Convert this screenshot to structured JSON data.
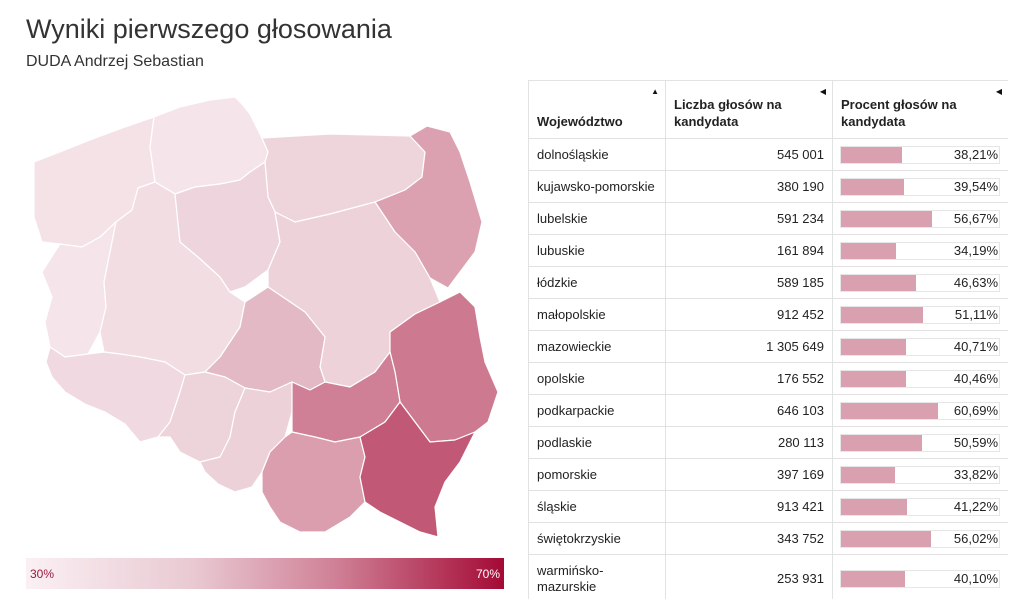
{
  "title": "Wyniki pierwszego głosowania",
  "subtitle": "DUDA Andrzej Sebastian",
  "scale": {
    "min_label": "30%",
    "max_label": "70%"
  },
  "table": {
    "headers": [
      "Województwo",
      "Liczba głosów na kandydata",
      "Procent głosów na kandydata"
    ]
  },
  "colors": {
    "bar": "#d9a1b0",
    "scale_low": "#faf0f3",
    "scale_high": "#a40a35"
  },
  "chart_data": {
    "type": "table",
    "title": "Wyniki pierwszego głosowania",
    "subtitle": "DUDA Andrzej Sebastian",
    "columns": [
      "Województwo",
      "Liczba głosów na kandydata",
      "Procent głosów na kandydata"
    ],
    "color_scale": {
      "min": 30,
      "max": 70,
      "unit": "%"
    },
    "rows": [
      {
        "name": "dolnośląskie",
        "votes": "545 001",
        "pct": 38.21,
        "pct_label": "38,21%"
      },
      {
        "name": "kujawsko-pomorskie",
        "votes": "380 190",
        "pct": 39.54,
        "pct_label": "39,54%"
      },
      {
        "name": "lubelskie",
        "votes": "591 234",
        "pct": 56.67,
        "pct_label": "56,67%"
      },
      {
        "name": "lubuskie",
        "votes": "161 894",
        "pct": 34.19,
        "pct_label": "34,19%"
      },
      {
        "name": "łódzkie",
        "votes": "589 185",
        "pct": 46.63,
        "pct_label": "46,63%"
      },
      {
        "name": "małopolskie",
        "votes": "912 452",
        "pct": 51.11,
        "pct_label": "51,11%"
      },
      {
        "name": "mazowieckie",
        "votes": "1 305 649",
        "pct": 40.71,
        "pct_label": "40,71%"
      },
      {
        "name": "opolskie",
        "votes": "176 552",
        "pct": 40.46,
        "pct_label": "40,46%"
      },
      {
        "name": "podkarpackie",
        "votes": "646 103",
        "pct": 60.69,
        "pct_label": "60,69%"
      },
      {
        "name": "podlaskie",
        "votes": "280 113",
        "pct": 50.59,
        "pct_label": "50,59%"
      },
      {
        "name": "pomorskie",
        "votes": "397 169",
        "pct": 33.82,
        "pct_label": "33,82%"
      },
      {
        "name": "śląskie",
        "votes": "913 421",
        "pct": 41.22,
        "pct_label": "41,22%"
      },
      {
        "name": "świętokrzyskie",
        "votes": "343 752",
        "pct": 56.02,
        "pct_label": "56,02%"
      },
      {
        "name": "warmińsko-mazurskie",
        "votes": "253 931",
        "pct": 40.1,
        "pct_label": "40,10%"
      }
    ],
    "map_values": {
      "zachodniopomorskie": 35,
      "pomorskie": 33.82,
      "warminsko-mazurskie": 40.1,
      "podlaskie": 50.59,
      "lubuskie": 34.19,
      "wielkopolskie": 37,
      "kujawsko-pomorskie": 39.54,
      "mazowieckie": 40.71,
      "lodzkie": 46.63,
      "lubelskie": 56.67,
      "dolnoslaskie": 38.21,
      "opolskie": 40.46,
      "slaskie": 41.22,
      "swietokrzyskie": 56.02,
      "malopolskie": 51.11,
      "podkarpackie": 60.69
    }
  }
}
